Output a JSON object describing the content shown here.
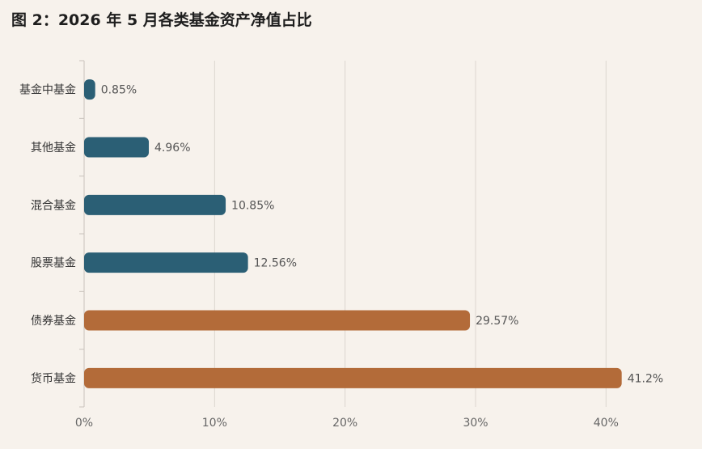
{
  "title": "图 2：2026 年 5 月各类基金资产净值占比",
  "chart_data": {
    "type": "bar",
    "orientation": "horizontal",
    "title": "图 2：2026 年 5 月各类基金资产净值占比",
    "categories": [
      "基金中基金",
      "其他基金",
      "混合基金",
      "股票基金",
      "债券基金",
      "货币基金"
    ],
    "values": [
      0.85,
      4.96,
      10.85,
      12.56,
      29.57,
      41.2
    ],
    "value_labels": [
      "0.85%",
      "4.96%",
      "10.85%",
      "12.56%",
      "29.57%",
      "41.2%"
    ],
    "bar_colors": [
      "#2b5f75",
      "#2b5f75",
      "#2b5f75",
      "#2b5f75",
      "#b36b39",
      "#b36b39"
    ],
    "xlim": [
      0,
      45
    ],
    "x_ticks": [
      0,
      10,
      20,
      30,
      40
    ],
    "x_tick_labels": [
      "0%",
      "10%",
      "20%",
      "30%",
      "40%"
    ],
    "xlabel": "",
    "ylabel": "",
    "grid": "vertical",
    "legend": "none"
  }
}
